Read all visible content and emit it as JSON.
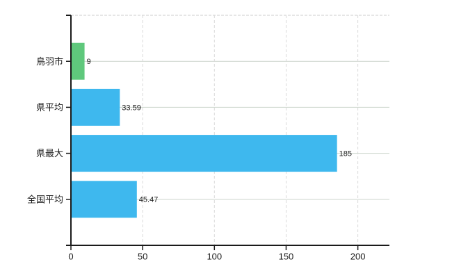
{
  "chart_data": {
    "type": "bar",
    "orientation": "horizontal",
    "title": "",
    "xlabel": "",
    "ylabel": "",
    "categories": [
      "鳥羽市",
      "県平均",
      "県最大",
      "全国平均"
    ],
    "values": [
      9,
      33.59,
      185,
      45.47
    ],
    "value_labels": [
      "9",
      "33.59",
      "185",
      "45.47"
    ],
    "bar_colors": [
      "#5fc87c",
      "#3eb8ee",
      "#3eb8ee",
      "#3eb8ee"
    ],
    "xlim": [
      0,
      222
    ],
    "xticks": [
      0,
      50,
      100,
      150,
      200
    ],
    "xtick_labels": [
      "0",
      "50",
      "100",
      "150",
      "200"
    ],
    "grid_vertical": "dashed",
    "grid_horizontal": "solid",
    "legend": false,
    "colors": {
      "bar_blue": "#3eb8ee",
      "bar_green": "#5fc87c",
      "axis": "#1a1a1a",
      "grid_vertical": "#d9d9d9",
      "grid_horizontal": "#ccd4cc",
      "plot_top_border": "#cccccc",
      "text": "#1a1a1a",
      "background": "#ffffff"
    }
  }
}
